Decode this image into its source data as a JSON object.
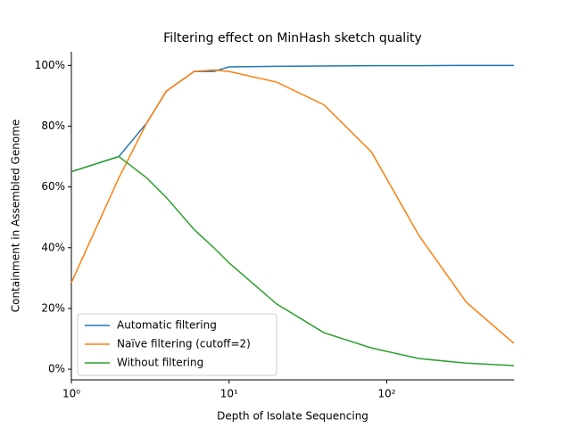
{
  "chart_data": {
    "type": "line",
    "title": "Filtering effect on MinHash sketch quality",
    "x_label": "Depth of Isolate Sequencing",
    "y_label": "Containment in Assembled Genome",
    "x": [
      1,
      2,
      3,
      4,
      6,
      8,
      10,
      20,
      40,
      80,
      160,
      320,
      640
    ],
    "series": [
      {
        "name": "Automatic filtering",
        "color": "#1f77b4",
        "values": [
          65,
          70,
          81,
          91.5,
          98,
          98,
          99.5,
          99.7,
          99.8,
          99.9,
          99.9,
          100,
          100
        ]
      },
      {
        "name": "Naïve filtering (cutoff=2)",
        "color": "#ff7f0e",
        "values": [
          28.5,
          63,
          81,
          91.5,
          98,
          98.5,
          98,
          94.5,
          87,
          71.5,
          44,
          22,
          8.5
        ]
      },
      {
        "name": "Without filtering",
        "color": "#2ca02c",
        "values": [
          65,
          70,
          63,
          56.5,
          46,
          40,
          35,
          21.5,
          12,
          7,
          3.5,
          2,
          1.2
        ]
      }
    ],
    "x_log": true,
    "xlim": [
      1,
      640
    ],
    "xticks": [
      {
        "value": 1,
        "label": "10⁰"
      },
      {
        "value": 10,
        "label": "10¹"
      },
      {
        "value": 100,
        "label": "10²"
      }
    ],
    "ylim": [
      -3.5,
      104.5
    ],
    "yticks": [
      {
        "value": 0,
        "label": "0%"
      },
      {
        "value": 20,
        "label": "20%"
      },
      {
        "value": 40,
        "label": "40%"
      },
      {
        "value": 60,
        "label": "60%"
      },
      {
        "value": 80,
        "label": "80%"
      },
      {
        "value": 100,
        "label": "100%"
      }
    ],
    "legend": "lower left"
  }
}
